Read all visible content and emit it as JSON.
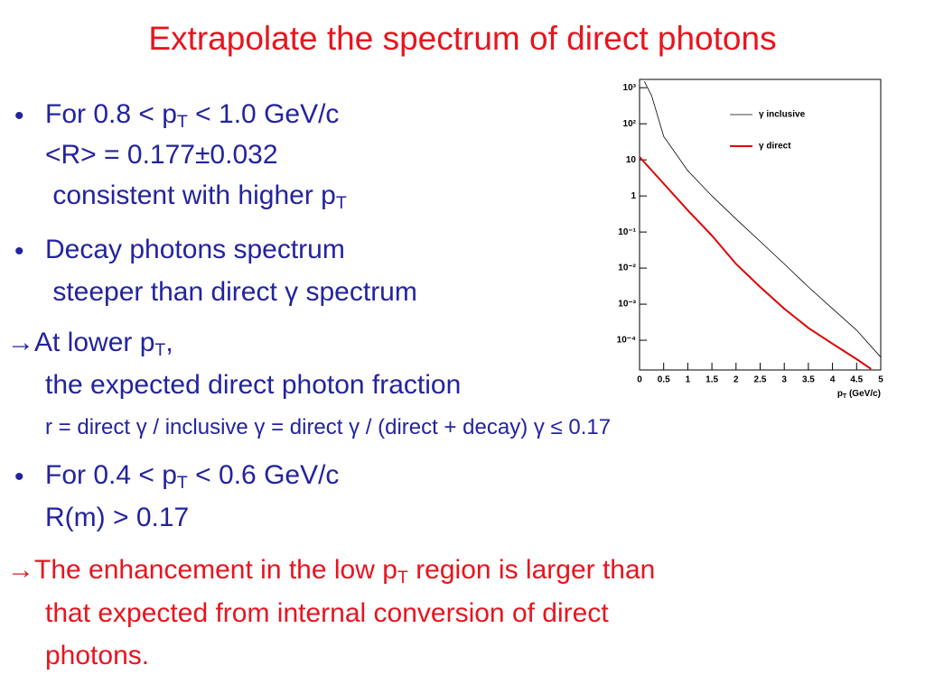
{
  "title": "Extrapolate the spectrum of direct photons",
  "title_color": "#e8141e",
  "items": [
    {
      "bullet": true,
      "color": "#2323a0",
      "lines": [
        [
          "For 0.8 < p",
          {
            "sub": "T"
          },
          " < 1.0 GeV/c"
        ],
        [
          "<R> = 0.177±0.032"
        ],
        [
          " consistent with higher p",
          {
            "sub": "T"
          }
        ]
      ]
    },
    {
      "bullet": true,
      "color": "#2323a0",
      "lines": [
        [
          "Decay photons spectrum"
        ],
        [
          " steeper than direct γ spectrum"
        ]
      ]
    },
    {
      "bullet": false,
      "color": "#2323a0",
      "lines": [
        [
          "→At lower p",
          {
            "sub": "T"
          },
          ","
        ],
        [
          "the expected direct photon fraction"
        ],
        [
          "r = direct γ / inclusive γ = direct γ / (direct + decay) γ ≤ 0.17"
        ]
      ]
    },
    {
      "bullet": true,
      "color": "#2323a0",
      "lines": [
        [
          "For 0.4 < p",
          {
            "sub": "T"
          },
          " < 0.6 GeV/c"
        ],
        [
          "R(m) > 0.17"
        ]
      ]
    },
    {
      "bullet": false,
      "color": "#e8141e",
      "lines": [
        [
          "→The enhancement in the low p",
          {
            "sub": "T"
          },
          " region is larger than"
        ],
        [
          "that expected from internal conversion of direct"
        ],
        [
          "photons."
        ]
      ]
    }
  ],
  "chart_data": {
    "type": "line",
    "x_label": [
      "p",
      {
        "sub": "T"
      },
      " (GeV/c)"
    ],
    "xlim": [
      0,
      5
    ],
    "xticks": [
      0,
      0.5,
      1,
      1.5,
      2,
      2.5,
      3,
      3.5,
      4,
      4.5,
      5
    ],
    "ylim": [
      1.5e-05,
      1700
    ],
    "log_y": true,
    "yticks": [
      {
        "value": 1000,
        "label": "10³"
      },
      {
        "value": 100,
        "label": "10²"
      },
      10,
      1,
      {
        "value": 0.1,
        "label": "10⁻¹"
      },
      {
        "value": 0.01,
        "label": "10⁻²"
      },
      {
        "value": 0.001,
        "label": "10⁻³"
      },
      {
        "value": 0.0001,
        "label": "10⁻⁴"
      }
    ],
    "legend": "upper right",
    "series": [
      {
        "name": "γ inclusive",
        "color": "#000000",
        "x": [
          0.1,
          0.25,
          0.5,
          1,
          1.5,
          2,
          2.5,
          3,
          3.5,
          4,
          4.5,
          5
        ],
        "values": [
          1500,
          600,
          45,
          5,
          1,
          0.23,
          0.055,
          0.013,
          0.003,
          0.00075,
          0.00019,
          3.4e-05
        ]
      },
      {
        "name": "γ direct",
        "color": "#e00000",
        "x": [
          0,
          0.5,
          1,
          1.5,
          2,
          2.5,
          3,
          3.5,
          4,
          4.5,
          4.8
        ],
        "values": [
          12,
          2.2,
          0.4,
          0.08,
          0.013,
          0.003,
          0.00075,
          0.00022,
          8e-05,
          3e-05,
          1.6e-05
        ]
      }
    ]
  }
}
